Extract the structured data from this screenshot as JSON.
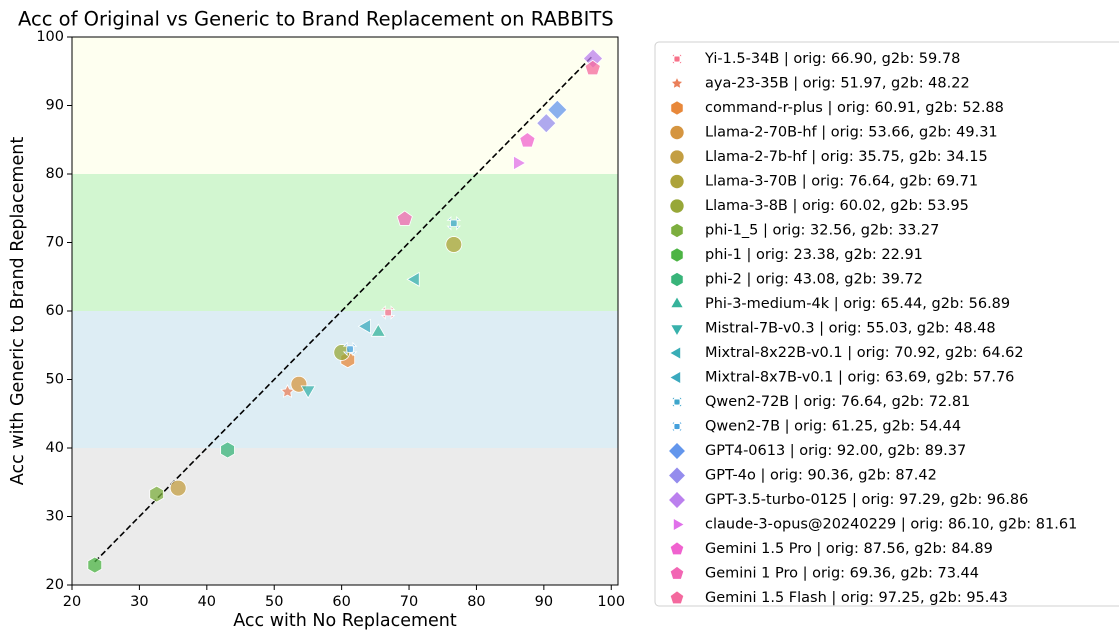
{
  "chart_data": {
    "type": "scatter",
    "title": "Acc of Original vs Generic to Brand Replacement on RABBITS",
    "x_label": "Acc with No Replacement",
    "y_label": "Acc with Generic to Brand Replacement",
    "xlim": [
      20,
      101
    ],
    "ylim": [
      20,
      100
    ],
    "xticks": [
      20,
      30,
      40,
      50,
      60,
      70,
      80,
      90,
      100
    ],
    "yticks": [
      20,
      30,
      40,
      50,
      60,
      70,
      80,
      90,
      100
    ],
    "bands": [
      {
        "from": 20,
        "to": 40,
        "color": "#ebebeb"
      },
      {
        "from": 40,
        "to": 60,
        "color": "#ddedf4"
      },
      {
        "from": 60,
        "to": 80,
        "color": "#d2f6d0"
      },
      {
        "from": 80,
        "to": 100,
        "color": "#fefff0"
      }
    ],
    "legend": "upper right outside",
    "series": [
      {
        "name": "Yi-1.5-34B | orig: 66.90, g2b: 59.78",
        "color": "#f77189",
        "marker": "x",
        "x": 66.9,
        "y": 59.78
      },
      {
        "name": "aya-23-35B | orig: 51.97, g2b: 48.22",
        "color": "#ea7f5a",
        "marker": "star",
        "x": 51.97,
        "y": 48.22
      },
      {
        "name": "command-r-plus | orig: 60.91, g2b: 52.88",
        "color": "#e8883a",
        "marker": "hexagon",
        "x": 60.91,
        "y": 52.88
      },
      {
        "name": "Llama-2-70B-hf | orig: 53.66, g2b: 49.31",
        "color": "#d59540",
        "marker": "circle",
        "x": 53.66,
        "y": 49.31
      },
      {
        "name": "Llama-2-7b-hf | orig: 35.75, g2b: 34.15",
        "color": "#c39e42",
        "marker": "circle",
        "x": 35.75,
        "y": 34.15
      },
      {
        "name": "Llama-3-70B | orig: 76.64, g2b: 69.71",
        "color": "#ada33a",
        "marker": "circle",
        "x": 76.64,
        "y": 69.71
      },
      {
        "name": "Llama-3-8B | orig: 60.02, g2b: 53.95",
        "color": "#97a738",
        "marker": "circle",
        "x": 60.02,
        "y": 53.95
      },
      {
        "name": "phi-1_5 | orig: 32.56, g2b: 33.27",
        "color": "#7cae3e",
        "marker": "hexagon",
        "x": 32.56,
        "y": 33.27
      },
      {
        "name": "phi-1 | orig: 23.38, g2b: 22.91",
        "color": "#4cb444",
        "marker": "hexagon",
        "x": 23.38,
        "y": 22.91
      },
      {
        "name": "phi-2 | orig: 43.08, g2b: 39.72",
        "color": "#38b479",
        "marker": "hexagon",
        "x": 43.08,
        "y": 39.72
      },
      {
        "name": "Phi-3-medium-4k | orig: 65.44, g2b: 56.89",
        "color": "#36b39b",
        "marker": "tri-up",
        "x": 65.44,
        "y": 56.89
      },
      {
        "name": "Mistral-7B-v0.3 | orig: 55.03, g2b: 48.48",
        "color": "#38b1ab",
        "marker": "tri-down",
        "x": 55.03,
        "y": 48.48
      },
      {
        "name": "Mixtral-8x22B-v0.1 | orig: 70.92, g2b: 64.62",
        "color": "#39adb6",
        "marker": "tri-left",
        "x": 70.92,
        "y": 64.62
      },
      {
        "name": "Mixtral-8x7B-v0.1 | orig: 63.69, g2b: 57.76",
        "color": "#3ba9be",
        "marker": "tri-left",
        "x": 63.69,
        "y": 57.76
      },
      {
        "name": "Qwen2-72B | orig: 76.64, g2b: 72.81",
        "color": "#3da5cb",
        "marker": "x",
        "x": 76.64,
        "y": 72.81
      },
      {
        "name": "Qwen2-7B | orig: 61.25, g2b: 54.44",
        "color": "#44a0dc",
        "marker": "x",
        "x": 61.25,
        "y": 54.44
      },
      {
        "name": "GPT4-0613 | orig: 92.00, g2b: 89.37",
        "color": "#6396ec",
        "marker": "diamond",
        "x": 92.0,
        "y": 89.37
      },
      {
        "name": "GPT-4o | orig: 90.36, g2b: 87.42",
        "color": "#948ced",
        "marker": "diamond",
        "x": 90.36,
        "y": 87.42
      },
      {
        "name": "GPT-3.5-turbo-0125 | orig: 97.29, g2b: 96.86",
        "color": "#bb80ee",
        "marker": "diamond",
        "x": 97.29,
        "y": 96.86
      },
      {
        "name": "claude-3-opus@20240229 | orig: 86.10, g2b: 81.61",
        "color": "#e070ea",
        "marker": "tri-right",
        "x": 86.1,
        "y": 81.61
      },
      {
        "name": "Gemini 1.5 Pro | orig: 87.56, g2b: 84.89",
        "color": "#f062cf",
        "marker": "pentagon",
        "x": 87.56,
        "y": 84.89
      },
      {
        "name": "Gemini 1 Pro | orig: 69.36, g2b: 73.44",
        "color": "#f266b4",
        "marker": "pentagon",
        "x": 69.36,
        "y": 73.44
      },
      {
        "name": "Gemini 1.5 Flash | orig: 97.25, g2b: 95.43",
        "color": "#f4699e",
        "marker": "pentagon",
        "x": 97.25,
        "y": 95.43
      }
    ]
  }
}
